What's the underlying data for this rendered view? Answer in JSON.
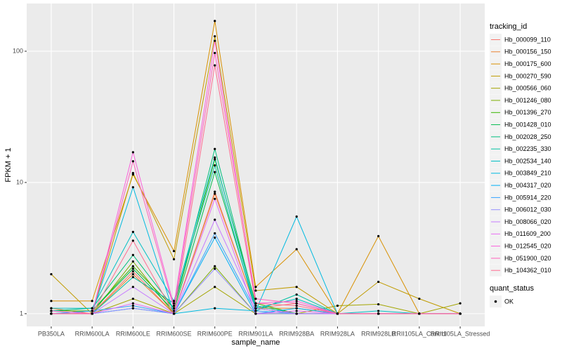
{
  "chart_data": {
    "type": "line",
    "x_label": "sample_name",
    "y_label": "FPKM + 1",
    "categories": [
      "PB350LA",
      "RRIM600LA",
      "RRIM600LE",
      "RRIM600SE",
      "RRIM600PE",
      "RRIM901LA",
      "RRIM928BA",
      "RRIM928LA",
      "RRIM928LB",
      "RRII105LA_Control",
      "RRII105LA_Stressed"
    ],
    "log_y": true,
    "ylim": [
      0.8,
      231
    ],
    "yticks": [
      1,
      10,
      100
    ],
    "grid": true,
    "legend_position": "right",
    "legend_title": "tracking_id",
    "point_legend_title": "quant_status",
    "point_legend_label": "OK",
    "point_color": "#000000",
    "series": [
      {
        "name": "Hb_000099_110",
        "color": "#F8766D",
        "values": [
          1.0,
          1.0,
          2.1,
          1.0,
          8.5,
          1.1,
          1.2,
          1.0,
          1.0,
          1.0,
          1.0
        ]
      },
      {
        "name": "Hb_000156_150",
        "color": "#EA8331",
        "values": [
          1.1,
          1.0,
          2.0,
          1.0,
          8.2,
          1.1,
          1.1,
          1.0,
          1.0,
          1.0,
          1.0
        ]
      },
      {
        "name": "Hb_000175_600",
        "color": "#D89000",
        "values": [
          1.25,
          1.25,
          11.5,
          3.0,
          170,
          1.6,
          3.1,
          1.0,
          3.9,
          1.0,
          1.0
        ]
      },
      {
        "name": "Hb_000270_590",
        "color": "#C09B00",
        "values": [
          2.0,
          1.0,
          11.8,
          2.6,
          130,
          1.5,
          1.6,
          1.0,
          1.75,
          1.3,
          1.0
        ]
      },
      {
        "name": "Hb_000566_060",
        "color": "#A3A500",
        "values": [
          1.0,
          1.0,
          1.3,
          1.0,
          1.6,
          1.0,
          1.0,
          1.15,
          1.18,
          1.0,
          1.2
        ]
      },
      {
        "name": "Hb_001246_080",
        "color": "#7CAE00",
        "values": [
          1.0,
          1.0,
          2.5,
          1.0,
          2.3,
          1.0,
          1.0,
          1.0,
          1.0,
          1.0,
          1.0
        ]
      },
      {
        "name": "Hb_001396_270",
        "color": "#39B600",
        "values": [
          1.05,
          1.05,
          2.3,
          1.1,
          15,
          1.2,
          1.0,
          1.0,
          1.0,
          1.0,
          1.0
        ]
      },
      {
        "name": "Hb_001428_010",
        "color": "#00BB4E",
        "values": [
          1.0,
          1.05,
          2.2,
          1.05,
          12,
          1.1,
          1.0,
          1.0,
          1.0,
          1.0,
          1.0
        ]
      },
      {
        "name": "Hb_002028_250",
        "color": "#00BF7D",
        "values": [
          1.05,
          1.1,
          2.8,
          1.1,
          18,
          1.15,
          1.0,
          1.0,
          1.0,
          1.0,
          1.0
        ]
      },
      {
        "name": "Hb_002235_330",
        "color": "#00C1A3",
        "values": [
          1.0,
          1.0,
          1.9,
          1.2,
          13.5,
          1.05,
          1.4,
          1.0,
          1.0,
          1.0,
          1.0
        ]
      },
      {
        "name": "Hb_002534_140",
        "color": "#00BFC4",
        "values": [
          1.1,
          1.1,
          4.2,
          1.25,
          15.5,
          1.1,
          1.3,
          1.0,
          1.05,
          1.0,
          1.0
        ]
      },
      {
        "name": "Hb_003849_210",
        "color": "#00BAE0",
        "values": [
          1.0,
          1.0,
          9.2,
          1.0,
          1.1,
          1.05,
          5.5,
          1.0,
          1.0,
          1.0,
          1.0
        ]
      },
      {
        "name": "Hb_004317_020",
        "color": "#00B0F6",
        "values": [
          1.0,
          1.0,
          1.1,
          1.0,
          3.8,
          1.0,
          1.1,
          1.0,
          1.0,
          1.0,
          1.0
        ]
      },
      {
        "name": "Hb_005914_220",
        "color": "#35A2FF",
        "values": [
          1.0,
          1.05,
          1.15,
          1.0,
          4.1,
          1.05,
          1.0,
          1.0,
          1.0,
          1.0,
          1.0
        ]
      },
      {
        "name": "Hb_006012_030",
        "color": "#9590FF",
        "values": [
          1.0,
          1.0,
          1.1,
          1.0,
          2.2,
          1.0,
          1.0,
          1.0,
          1.0,
          1.0,
          1.0
        ]
      },
      {
        "name": "Hb_008066_020",
        "color": "#C77CFF",
        "values": [
          1.0,
          1.0,
          1.6,
          1.0,
          5.2,
          1.1,
          1.0,
          1.0,
          1.0,
          1.0,
          1.0
        ]
      },
      {
        "name": "Hb_011609_200",
        "color": "#E76BF3",
        "values": [
          1.0,
          1.0,
          1.2,
          1.0,
          7.5,
          1.0,
          1.05,
          1.0,
          1.0,
          1.0,
          1.0
        ]
      },
      {
        "name": "Hb_012545_020",
        "color": "#FA62DB",
        "values": [
          1.05,
          1.0,
          17,
          1.15,
          120,
          1.2,
          1.25,
          1.0,
          1.0,
          1.0,
          1.0
        ]
      },
      {
        "name": "Hb_051900_020",
        "color": "#FF62BC",
        "values": [
          1.0,
          1.0,
          14.5,
          1.1,
          97,
          1.3,
          1.2,
          1.0,
          1.0,
          1.0,
          1.0
        ]
      },
      {
        "name": "Hb_104362_010",
        "color": "#FF6C91",
        "values": [
          1.0,
          1.0,
          3.6,
          1.0,
          78,
          1.2,
          1.15,
          1.0,
          1.0,
          1.0,
          1.0
        ]
      }
    ]
  }
}
